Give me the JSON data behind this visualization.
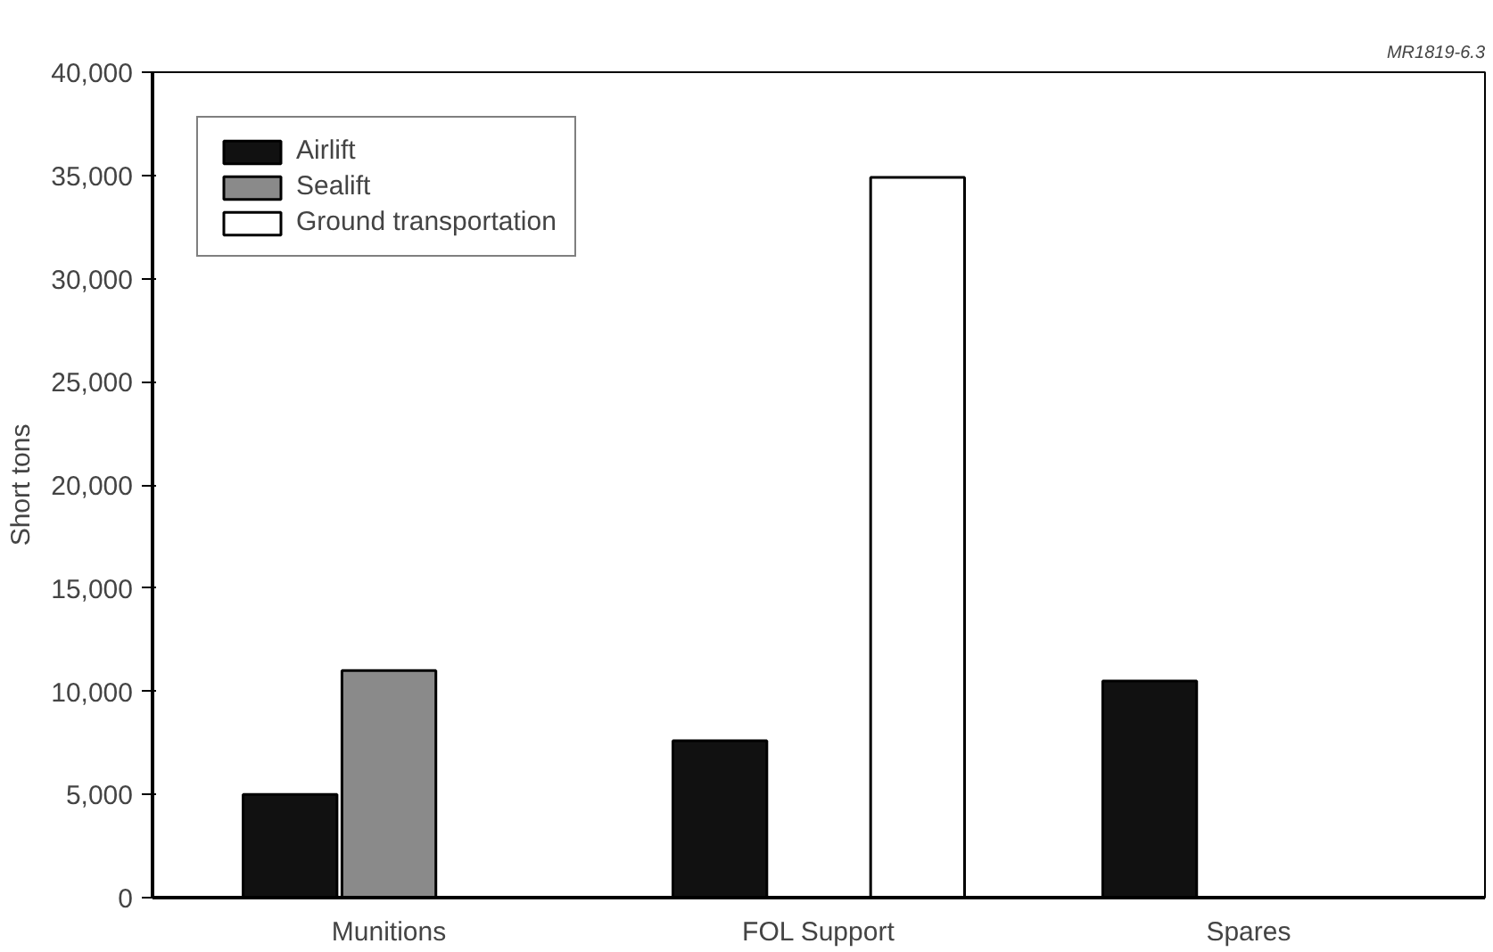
{
  "chart_data": {
    "type": "bar",
    "ylabel": "Short tons",
    "categories": [
      "Munitions",
      "FOL Support",
      "Spares"
    ],
    "series": [
      {
        "name": "Airlift",
        "color": "#111111",
        "values": [
          5000,
          7600,
          10500
        ]
      },
      {
        "name": "Sealift",
        "color": "#8a8a8a",
        "values": [
          11000,
          null,
          null
        ]
      },
      {
        "name": "Ground transportation",
        "color": "#ffffff",
        "values": [
          null,
          34900,
          null
        ]
      }
    ],
    "ylim": [
      0,
      40000
    ],
    "yticks": [
      {
        "value": 0,
        "label": "0"
      },
      {
        "value": 5000,
        "label": "5,000"
      },
      {
        "value": 10000,
        "label": "10,000"
      },
      {
        "value": 15000,
        "label": "15,000"
      },
      {
        "value": 20000,
        "label": "20,000"
      },
      {
        "value": 25000,
        "label": "25,000"
      },
      {
        "value": 30000,
        "label": "30,000"
      },
      {
        "value": 35000,
        "label": "35,000"
      },
      {
        "value": 40000,
        "label": "40,000"
      }
    ],
    "grid": false,
    "legend": "top left",
    "annotations": [
      "MR1819-6.3"
    ]
  }
}
